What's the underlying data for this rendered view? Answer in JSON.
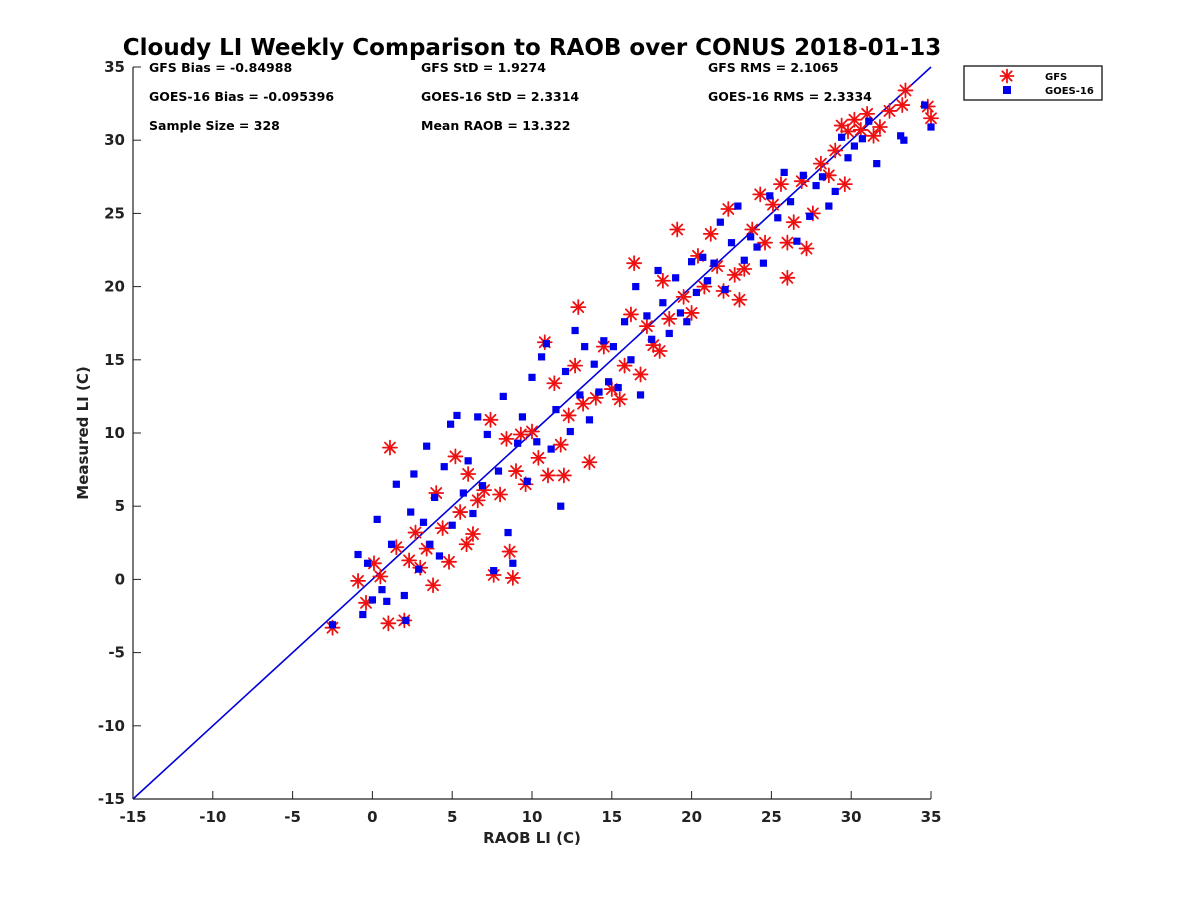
{
  "chart_data": {
    "type": "scatter",
    "title": "Cloudy LI Weekly Comparison to RAOB over CONUS 2018-01-13",
    "xlabel": "RAOB LI (C)",
    "ylabel": "Measured LI (C)",
    "xlim": [
      -15,
      35
    ],
    "ylim": [
      -15,
      35
    ],
    "xticks": [
      -15,
      -10,
      -5,
      0,
      5,
      10,
      15,
      20,
      25,
      30,
      35
    ],
    "yticks": [
      -15,
      -10,
      -5,
      0,
      5,
      10,
      15,
      20,
      25,
      30,
      35
    ],
    "grid": false,
    "legend_position": "outside-top-right",
    "reference_line": {
      "from": [
        -15,
        -15
      ],
      "to": [
        35,
        35
      ],
      "color": "#0000dd"
    },
    "stats": [
      [
        "GFS Bias = -0.84988",
        "GFS StD = 1.9274",
        "GFS RMS = 2.1065"
      ],
      [
        "GOES-16 Bias = -0.095396",
        "GOES-16 StD = 2.3314",
        "GOES-16 RMS = 2.3334"
      ],
      [
        "Sample Size = 328",
        "Mean RAOB = 13.322",
        ""
      ]
    ],
    "series": [
      {
        "name": "GFS",
        "marker": "asterisk",
        "color": "#ee1111",
        "points": [
          [
            -2.5,
            -3.3
          ],
          [
            -0.9,
            -0.1
          ],
          [
            -0.4,
            -1.6
          ],
          [
            0.1,
            1.1
          ],
          [
            0.5,
            0.2
          ],
          [
            1.0,
            -3.0
          ],
          [
            1.1,
            9.0
          ],
          [
            1.5,
            2.2
          ],
          [
            2.0,
            -2.8
          ],
          [
            2.3,
            1.3
          ],
          [
            2.7,
            3.2
          ],
          [
            3.0,
            0.8
          ],
          [
            3.4,
            2.1
          ],
          [
            3.8,
            -0.4
          ],
          [
            4.0,
            5.9
          ],
          [
            4.4,
            3.5
          ],
          [
            4.8,
            1.2
          ],
          [
            5.2,
            8.4
          ],
          [
            5.5,
            4.6
          ],
          [
            5.9,
            2.4
          ],
          [
            6.0,
            7.2
          ],
          [
            6.3,
            3.1
          ],
          [
            6.6,
            5.4
          ],
          [
            7.0,
            6.1
          ],
          [
            7.4,
            10.9
          ],
          [
            7.6,
            0.3
          ],
          [
            8.0,
            5.8
          ],
          [
            8.4,
            9.6
          ],
          [
            8.6,
            1.9
          ],
          [
            8.8,
            0.1
          ],
          [
            9.0,
            7.4
          ],
          [
            9.3,
            9.9
          ],
          [
            9.6,
            6.5
          ],
          [
            10.0,
            10.1
          ],
          [
            10.4,
            8.3
          ],
          [
            10.8,
            16.2
          ],
          [
            11.0,
            7.1
          ],
          [
            11.4,
            13.4
          ],
          [
            11.8,
            9.2
          ],
          [
            12.0,
            7.1
          ],
          [
            12.3,
            11.2
          ],
          [
            12.7,
            14.6
          ],
          [
            12.9,
            18.6
          ],
          [
            13.2,
            12.0
          ],
          [
            13.6,
            8.0
          ],
          [
            14.0,
            12.4
          ],
          [
            14.5,
            15.9
          ],
          [
            15.0,
            13.0
          ],
          [
            15.5,
            12.3
          ],
          [
            15.8,
            14.6
          ],
          [
            16.2,
            18.1
          ],
          [
            16.4,
            21.6
          ],
          [
            16.8,
            14.0
          ],
          [
            17.2,
            17.3
          ],
          [
            17.6,
            16.0
          ],
          [
            18.0,
            15.6
          ],
          [
            18.2,
            20.4
          ],
          [
            18.6,
            17.8
          ],
          [
            19.1,
            23.9
          ],
          [
            19.5,
            19.3
          ],
          [
            20.0,
            18.2
          ],
          [
            20.4,
            22.1
          ],
          [
            20.8,
            20.0
          ],
          [
            21.2,
            23.6
          ],
          [
            21.6,
            21.4
          ],
          [
            22.0,
            19.7
          ],
          [
            22.3,
            25.3
          ],
          [
            22.7,
            20.8
          ],
          [
            23.0,
            19.1
          ],
          [
            23.3,
            21.2
          ],
          [
            23.8,
            23.9
          ],
          [
            24.3,
            26.3
          ],
          [
            24.6,
            23.0
          ],
          [
            25.1,
            25.6
          ],
          [
            25.6,
            27.0
          ],
          [
            26.0,
            20.6
          ],
          [
            26.0,
            23.0
          ],
          [
            26.4,
            24.4
          ],
          [
            26.9,
            27.2
          ],
          [
            27.2,
            22.6
          ],
          [
            27.6,
            25.0
          ],
          [
            28.1,
            28.4
          ],
          [
            28.6,
            27.6
          ],
          [
            29.0,
            29.3
          ],
          [
            29.4,
            31.0
          ],
          [
            29.6,
            27.0
          ],
          [
            29.8,
            30.6
          ],
          [
            30.2,
            31.4
          ],
          [
            30.6,
            30.7
          ],
          [
            31.0,
            31.8
          ],
          [
            31.4,
            30.3
          ],
          [
            31.8,
            30.9
          ],
          [
            32.4,
            32.0
          ],
          [
            33.2,
            32.4
          ],
          [
            33.4,
            33.4
          ],
          [
            34.8,
            32.3
          ],
          [
            35.0,
            31.5
          ]
        ]
      },
      {
        "name": "GOES-16",
        "marker": "square",
        "color": "#0000ee",
        "points": [
          [
            -2.5,
            -3.1
          ],
          [
            -0.9,
            1.7
          ],
          [
            -0.6,
            -2.4
          ],
          [
            -0.3,
            1.1
          ],
          [
            0.0,
            -1.4
          ],
          [
            0.3,
            4.1
          ],
          [
            0.6,
            -0.7
          ],
          [
            0.9,
            -1.5
          ],
          [
            1.2,
            2.4
          ],
          [
            1.5,
            6.5
          ],
          [
            2.0,
            -1.1
          ],
          [
            2.1,
            -2.8
          ],
          [
            2.4,
            4.6
          ],
          [
            2.6,
            7.2
          ],
          [
            2.9,
            0.7
          ],
          [
            3.2,
            3.9
          ],
          [
            3.4,
            9.1
          ],
          [
            3.6,
            2.4
          ],
          [
            3.9,
            5.6
          ],
          [
            4.2,
            1.6
          ],
          [
            4.5,
            7.7
          ],
          [
            4.9,
            10.6
          ],
          [
            5.0,
            3.7
          ],
          [
            5.3,
            11.2
          ],
          [
            5.7,
            5.9
          ],
          [
            6.0,
            8.1
          ],
          [
            6.3,
            4.5
          ],
          [
            6.6,
            11.1
          ],
          [
            6.9,
            6.4
          ],
          [
            7.2,
            9.9
          ],
          [
            7.6,
            0.6
          ],
          [
            7.9,
            7.4
          ],
          [
            8.2,
            12.5
          ],
          [
            8.5,
            3.2
          ],
          [
            8.8,
            1.1
          ],
          [
            9.1,
            9.3
          ],
          [
            9.4,
            11.1
          ],
          [
            9.7,
            6.7
          ],
          [
            10.0,
            13.8
          ],
          [
            10.3,
            9.4
          ],
          [
            10.6,
            15.2
          ],
          [
            10.9,
            16.1
          ],
          [
            11.2,
            8.9
          ],
          [
            11.5,
            11.6
          ],
          [
            11.8,
            5.0
          ],
          [
            12.1,
            14.2
          ],
          [
            12.4,
            10.1
          ],
          [
            12.7,
            17.0
          ],
          [
            13.0,
            12.6
          ],
          [
            13.3,
            15.9
          ],
          [
            13.6,
            10.9
          ],
          [
            13.9,
            14.7
          ],
          [
            14.2,
            12.8
          ],
          [
            14.5,
            16.3
          ],
          [
            14.8,
            13.5
          ],
          [
            15.1,
            15.9
          ],
          [
            15.4,
            13.1
          ],
          [
            15.8,
            17.6
          ],
          [
            16.2,
            15.0
          ],
          [
            16.5,
            20.0
          ],
          [
            16.8,
            12.6
          ],
          [
            17.2,
            18.0
          ],
          [
            17.5,
            16.4
          ],
          [
            17.9,
            21.1
          ],
          [
            18.2,
            18.9
          ],
          [
            18.6,
            16.8
          ],
          [
            19.0,
            20.6
          ],
          [
            19.3,
            18.2
          ],
          [
            19.7,
            17.6
          ],
          [
            20.0,
            21.7
          ],
          [
            20.3,
            19.6
          ],
          [
            20.7,
            22.0
          ],
          [
            21.0,
            20.4
          ],
          [
            21.4,
            21.6
          ],
          [
            21.8,
            24.4
          ],
          [
            22.1,
            19.8
          ],
          [
            22.5,
            23.0
          ],
          [
            22.9,
            25.5
          ],
          [
            23.3,
            21.8
          ],
          [
            23.7,
            23.4
          ],
          [
            24.1,
            22.7
          ],
          [
            24.5,
            21.6
          ],
          [
            24.9,
            26.2
          ],
          [
            25.4,
            24.7
          ],
          [
            25.8,
            27.8
          ],
          [
            26.2,
            25.8
          ],
          [
            26.6,
            23.1
          ],
          [
            27.0,
            27.6
          ],
          [
            27.4,
            24.8
          ],
          [
            27.8,
            26.9
          ],
          [
            28.2,
            27.5
          ],
          [
            28.6,
            25.5
          ],
          [
            29.0,
            26.5
          ],
          [
            29.4,
            30.2
          ],
          [
            29.8,
            28.8
          ],
          [
            30.2,
            29.6
          ],
          [
            30.7,
            30.1
          ],
          [
            31.1,
            31.3
          ],
          [
            31.6,
            28.4
          ],
          [
            33.1,
            30.3
          ],
          [
            33.3,
            30.0
          ],
          [
            34.6,
            32.4
          ],
          [
            35.0,
            30.9
          ]
        ]
      }
    ]
  }
}
